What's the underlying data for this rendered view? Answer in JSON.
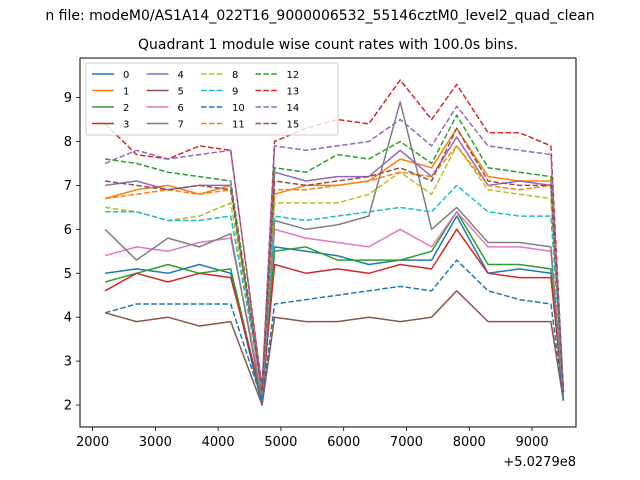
{
  "figure": {
    "suptitle": "n file: modeM0/AS1A14_022T16_9000006532_55146cztM0_level2_quad_clean",
    "offset_label": "+5.0279e8"
  },
  "chart_data": {
    "type": "line",
    "title": "Quadrant 1 module wise count rates with 100.0s bins.",
    "xlabel": "",
    "ylabel": "",
    "x_range": [
      2000,
      9500
    ],
    "xlim": [
      1800,
      9700
    ],
    "ylim": [
      1.5,
      9.9
    ],
    "x_ticks": [
      2000,
      3000,
      4000,
      5000,
      6000,
      7000,
      8000,
      9000
    ],
    "y_ticks": [
      2,
      3,
      4,
      5,
      6,
      7,
      8,
      9
    ],
    "grid": false,
    "legend_position": "upper-left",
    "legend_columns": 4,
    "series": [
      {
        "name": "0",
        "color": "#1f77b4",
        "dash": "solid",
        "x": [
          2200,
          2700,
          3200,
          3700,
          4200,
          4700,
          4900,
          5400,
          5900,
          6400,
          6900,
          7400,
          7800,
          8300,
          8800,
          9300,
          9500
        ],
        "y": [
          5.0,
          5.1,
          5.0,
          5.2,
          5.0,
          2.0,
          5.6,
          5.5,
          5.4,
          5.2,
          5.3,
          5.3,
          6.3,
          5.0,
          5.1,
          5.0,
          2.1
        ]
      },
      {
        "name": "1",
        "color": "#ff7f0e",
        "dash": "solid",
        "x": [
          2200,
          2700,
          3200,
          3700,
          4200,
          4700,
          4900,
          5400,
          5900,
          6400,
          6900,
          7400,
          7800,
          8300,
          8800,
          9300,
          9500
        ],
        "y": [
          6.7,
          6.9,
          7.0,
          6.8,
          7.0,
          2.3,
          6.8,
          7.0,
          7.0,
          7.1,
          7.6,
          7.4,
          8.3,
          7.2,
          7.1,
          7.1,
          2.2
        ]
      },
      {
        "name": "2",
        "color": "#2ca02c",
        "dash": "solid",
        "x": [
          2200,
          2700,
          3200,
          3700,
          4200,
          4700,
          4900,
          5400,
          5900,
          6400,
          6900,
          7400,
          7800,
          8300,
          8800,
          9300,
          9500
        ],
        "y": [
          4.8,
          5.0,
          5.2,
          5.0,
          5.1,
          2.1,
          5.5,
          5.6,
          5.3,
          5.3,
          5.3,
          5.5,
          6.4,
          5.2,
          5.2,
          5.1,
          2.1
        ]
      },
      {
        "name": "3",
        "color": "#d62728",
        "dash": "solid",
        "x": [
          2200,
          2700,
          3200,
          3700,
          4200,
          4700,
          4900,
          5400,
          5900,
          6400,
          6900,
          7400,
          7800,
          8300,
          8800,
          9300,
          9500
        ],
        "y": [
          4.6,
          5.0,
          4.8,
          5.0,
          4.9,
          2.2,
          5.2,
          5.0,
          5.1,
          5.0,
          5.2,
          5.1,
          6.0,
          5.0,
          4.9,
          4.9,
          2.2
        ]
      },
      {
        "name": "4",
        "color": "#9467bd",
        "dash": "solid",
        "x": [
          2200,
          2700,
          3200,
          3700,
          4200,
          4700,
          4900,
          5400,
          5900,
          6400,
          6900,
          7400,
          7800,
          8300,
          8800,
          9300,
          9500
        ],
        "y": [
          7.0,
          7.1,
          6.9,
          7.0,
          7.0,
          2.3,
          7.3,
          7.1,
          7.2,
          7.2,
          7.8,
          7.2,
          8.1,
          7.0,
          7.1,
          7.0,
          2.3
        ]
      },
      {
        "name": "5",
        "color": "#8c564b",
        "dash": "solid",
        "x": [
          2200,
          2700,
          3200,
          3700,
          4200,
          4700,
          4900,
          5400,
          5900,
          6400,
          6900,
          7400,
          7800,
          8300,
          8800,
          9300,
          9500
        ],
        "y": [
          4.1,
          3.9,
          4.0,
          3.8,
          3.9,
          2.0,
          4.0,
          3.9,
          3.9,
          4.0,
          3.9,
          4.0,
          4.6,
          3.9,
          3.9,
          3.9,
          2.1
        ]
      },
      {
        "name": "6",
        "color": "#e377c2",
        "dash": "solid",
        "x": [
          2200,
          2700,
          3200,
          3700,
          4200,
          4700,
          4900,
          5400,
          5900,
          6400,
          6900,
          7400,
          7800,
          8300,
          8800,
          9300,
          9500
        ],
        "y": [
          5.4,
          5.6,
          5.5,
          5.7,
          5.8,
          2.3,
          6.0,
          5.8,
          5.7,
          5.6,
          6.0,
          5.6,
          6.4,
          5.6,
          5.6,
          5.5,
          2.2
        ]
      },
      {
        "name": "7",
        "color": "#7f7f7f",
        "dash": "solid",
        "x": [
          2200,
          2700,
          3200,
          3700,
          4200,
          4700,
          4900,
          5400,
          5900,
          6400,
          6900,
          7400,
          7800,
          8300,
          8800,
          9300,
          9500
        ],
        "y": [
          6.0,
          5.3,
          5.8,
          5.6,
          5.9,
          2.1,
          6.2,
          6.0,
          6.1,
          6.3,
          8.9,
          6.0,
          6.5,
          5.7,
          5.7,
          5.6,
          2.1
        ]
      },
      {
        "name": "8",
        "color": "#bcbd22",
        "dash": "dashed",
        "x": [
          2200,
          2700,
          3200,
          3700,
          4200,
          4700,
          4900,
          5400,
          5900,
          6400,
          6900,
          7400,
          7800,
          8300,
          8800,
          9300,
          9500
        ],
        "y": [
          6.5,
          6.4,
          6.2,
          6.3,
          6.6,
          2.4,
          6.6,
          6.6,
          6.6,
          6.8,
          7.3,
          6.8,
          7.9,
          6.9,
          6.8,
          6.7,
          2.3
        ]
      },
      {
        "name": "9",
        "color": "#17becf",
        "dash": "dashed",
        "x": [
          2200,
          2700,
          3200,
          3700,
          4200,
          4700,
          4900,
          5400,
          5900,
          6400,
          6900,
          7400,
          7800,
          8300,
          8800,
          9300,
          9500
        ],
        "y": [
          6.4,
          6.4,
          6.2,
          6.2,
          6.3,
          2.4,
          6.3,
          6.2,
          6.3,
          6.4,
          6.5,
          6.4,
          7.0,
          6.4,
          6.3,
          6.3,
          2.3
        ]
      },
      {
        "name": "10",
        "color": "#1f77b4",
        "dash": "dashed",
        "x": [
          2200,
          2700,
          3200,
          3700,
          4200,
          4700,
          4900,
          5400,
          5900,
          6400,
          6900,
          7400,
          7800,
          8300,
          8800,
          9300,
          9500
        ],
        "y": [
          4.1,
          4.3,
          4.3,
          4.3,
          4.3,
          2.1,
          4.3,
          4.4,
          4.5,
          4.6,
          4.7,
          4.6,
          5.3,
          4.6,
          4.4,
          4.3,
          2.1
        ]
      },
      {
        "name": "11",
        "color": "#ff7f0e",
        "dash": "dashed",
        "x": [
          2200,
          2700,
          3200,
          3700,
          4200,
          4700,
          4900,
          5400,
          5900,
          6400,
          6900,
          7400,
          7800,
          8300,
          8800,
          9300,
          9500
        ],
        "y": [
          6.7,
          6.8,
          6.9,
          6.8,
          6.9,
          2.3,
          6.9,
          6.9,
          7.0,
          7.1,
          7.3,
          7.2,
          7.9,
          7.0,
          6.9,
          7.0,
          2.3
        ]
      },
      {
        "name": "12",
        "color": "#2ca02c",
        "dash": "dashed",
        "x": [
          2200,
          2700,
          3200,
          3700,
          4200,
          4700,
          4900,
          5400,
          5900,
          6400,
          6900,
          7400,
          7800,
          8300,
          8800,
          9300,
          9500
        ],
        "y": [
          7.6,
          7.5,
          7.3,
          7.2,
          7.1,
          2.4,
          7.4,
          7.3,
          7.7,
          7.6,
          8.0,
          7.5,
          8.6,
          7.4,
          7.3,
          7.2,
          2.3
        ]
      },
      {
        "name": "13",
        "color": "#d62728",
        "dash": "dashed",
        "x": [
          2200,
          2700,
          3200,
          3700,
          4200,
          4700,
          4900,
          5400,
          5900,
          6400,
          6900,
          7400,
          7800,
          8300,
          8800,
          9300,
          9500
        ],
        "y": [
          8.4,
          7.7,
          7.6,
          7.9,
          7.8,
          2.4,
          8.0,
          8.3,
          8.5,
          8.4,
          9.4,
          8.5,
          9.3,
          8.2,
          8.2,
          7.9,
          2.3
        ]
      },
      {
        "name": "14",
        "color": "#9467bd",
        "dash": "dashed",
        "x": [
          2200,
          2700,
          3200,
          3700,
          4200,
          4700,
          4900,
          5400,
          5900,
          6400,
          6900,
          7400,
          7800,
          8300,
          8800,
          9300,
          9500
        ],
        "y": [
          7.5,
          7.8,
          7.6,
          7.7,
          7.8,
          2.4,
          7.9,
          7.8,
          7.9,
          8.0,
          8.5,
          7.9,
          8.8,
          7.9,
          7.8,
          7.7,
          2.3
        ]
      },
      {
        "name": "15",
        "color": "#8c564b",
        "dash": "dashed",
        "x": [
          2200,
          2700,
          3200,
          3700,
          4200,
          4700,
          4900,
          5400,
          5900,
          6400,
          6900,
          7400,
          7800,
          8300,
          8800,
          9300,
          9500
        ],
        "y": [
          7.1,
          7.0,
          6.9,
          7.0,
          6.9,
          2.3,
          7.1,
          7.0,
          7.1,
          7.2,
          7.4,
          7.1,
          8.3,
          7.1,
          7.0,
          7.0,
          2.3
        ]
      }
    ]
  }
}
